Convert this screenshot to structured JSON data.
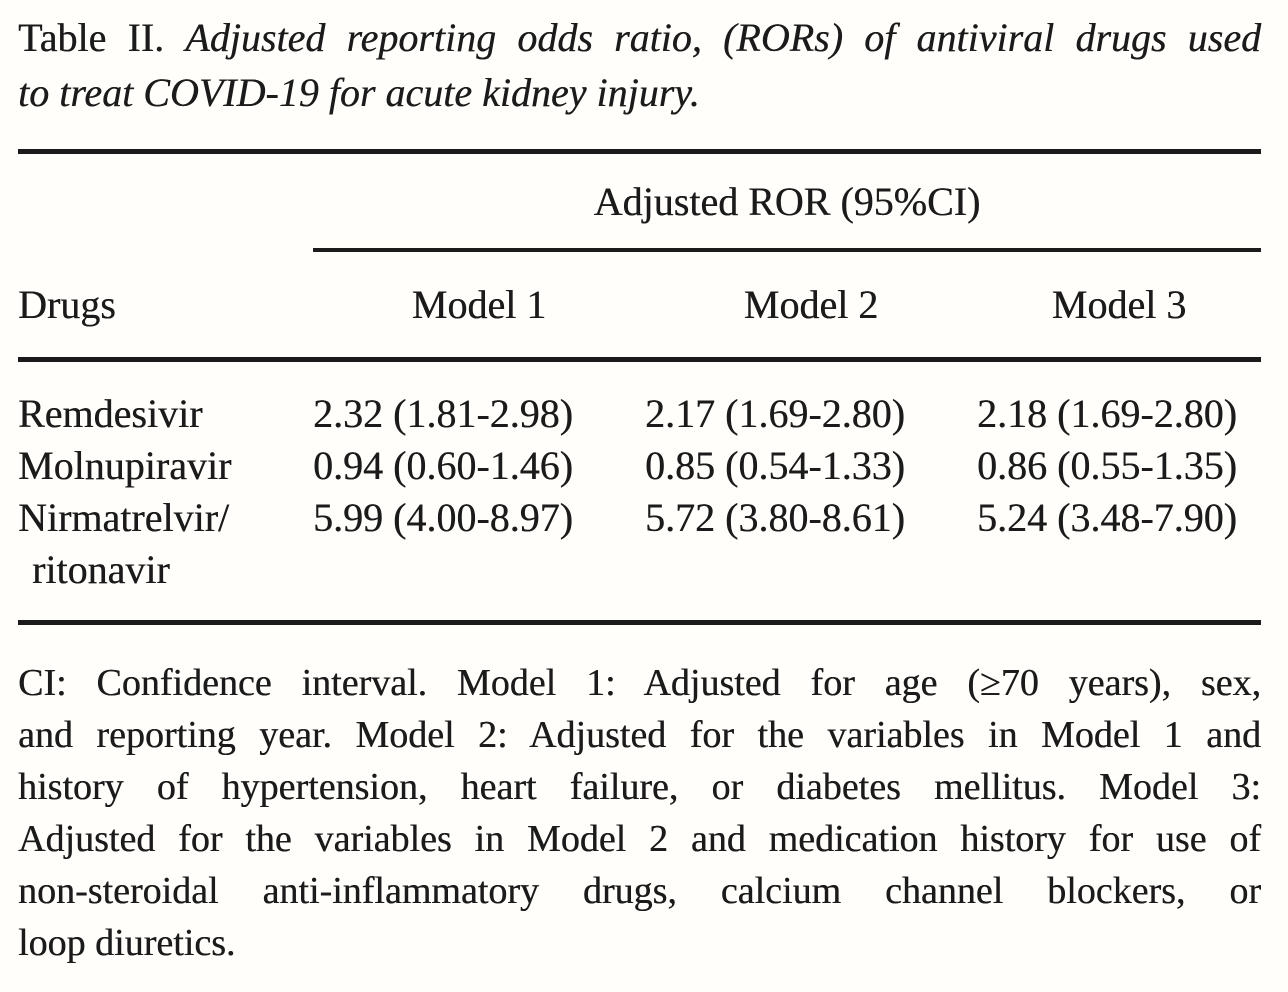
{
  "title": {
    "label": "Table II.",
    "rest_line1": "Adjusted reporting odds ratio, (RORs) of antiviral drugs used",
    "line2": "to treat COVID-19 for acute kidney injury."
  },
  "table": {
    "span_header": "Adjusted ROR (95%CI)",
    "col_headers": {
      "drugs": "Drugs",
      "model1": "Model 1",
      "model2": "Model 2",
      "model3": "Model 3"
    },
    "rows": [
      {
        "drug": "Remdesivir",
        "model1": "2.32 (1.81-2.98)",
        "model2": "2.17 (1.69-2.80)",
        "model3": "2.18 (1.69-2.80)"
      },
      {
        "drug": "Molnupiravir",
        "model1": "0.94 (0.60-1.46)",
        "model2": "0.85 (0.54-1.33)",
        "model3": "0.86 (0.55-1.35)"
      },
      {
        "drug": "Nirmatrelvir/",
        "drug_line2": "ritonavir",
        "model1": "5.99 (4.00-8.97)",
        "model2": "5.72 (3.80-8.61)",
        "model3": "5.24 (3.48-7.90)"
      }
    ]
  },
  "footnote": {
    "lines": [
      "CI: Confidence interval. Model 1: Adjusted for age (≥70 years), sex,",
      "and reporting year. Model 2: Adjusted for the variables in Model 1 and",
      "history of hypertension, heart failure, or diabetes mellitus. Model 3:",
      "Adjusted for the variables in Model 2 and medication history for use of",
      "non-steroidal anti-inflammatory drugs, calcium channel blockers, or",
      "loop diuretics."
    ]
  },
  "colors": {
    "background": "#fffefa",
    "text": "#1b1b1b",
    "rule": "#1b1b1b"
  }
}
